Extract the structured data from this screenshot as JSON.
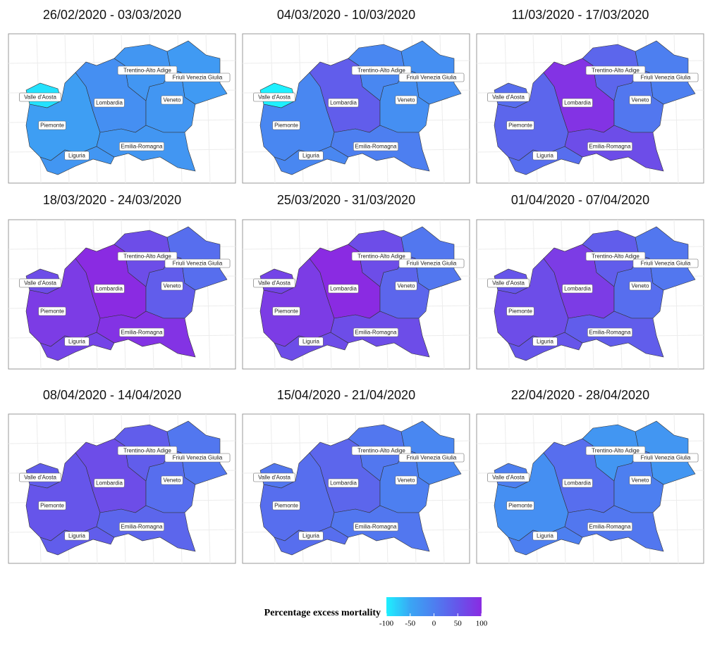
{
  "panels": [
    {
      "title": "26/02/2020 - 03/03/2020",
      "values": [
        -90,
        -40,
        -30,
        -20,
        -30,
        -30,
        -35,
        -30
      ]
    },
    {
      "title": "04/03/2020 - 10/03/2020",
      "values": [
        -100,
        -10,
        -10,
        40,
        -10,
        -20,
        -20,
        0
      ]
    },
    {
      "title": "11/03/2020 - 17/03/2020",
      "values": [
        20,
        30,
        20,
        90,
        30,
        10,
        0,
        60
      ]
    },
    {
      "title": "18/03/2020 - 24/03/2020",
      "values": [
        60,
        80,
        70,
        100,
        60,
        40,
        20,
        90
      ]
    },
    {
      "title": "25/03/2020 - 31/03/2020",
      "values": [
        70,
        80,
        60,
        100,
        60,
        30,
        10,
        60
      ]
    },
    {
      "title": "01/04/2020 - 07/04/2020",
      "values": [
        50,
        60,
        50,
        80,
        40,
        20,
        10,
        40
      ]
    },
    {
      "title": "08/04/2020 - 14/04/2020",
      "values": [
        40,
        50,
        40,
        60,
        40,
        20,
        10,
        30
      ]
    },
    {
      "title": "15/04/2020 - 21/04/2020",
      "values": [
        10,
        20,
        20,
        30,
        10,
        0,
        -10,
        10
      ]
    },
    {
      "title": "22/04/2020 - 28/04/2020",
      "values": [
        0,
        -20,
        0,
        20,
        -30,
        0,
        -30,
        10
      ]
    }
  ],
  "regions": [
    "Valle d'Aosta",
    "Piemonte",
    "Liguria",
    "Lombardia",
    "Trentino-Alto Adige",
    "Veneto",
    "Friuli Venezia Giulia",
    "Emilia-Romagna"
  ],
  "legend": {
    "title": "Percentage excess mortality",
    "ticks": [
      -100,
      -50,
      0,
      50,
      100
    ],
    "colors": [
      "#1ef0ff",
      "#3aa6f4",
      "#4d7ff0",
      "#6655ea",
      "#8a2be2"
    ]
  }
}
